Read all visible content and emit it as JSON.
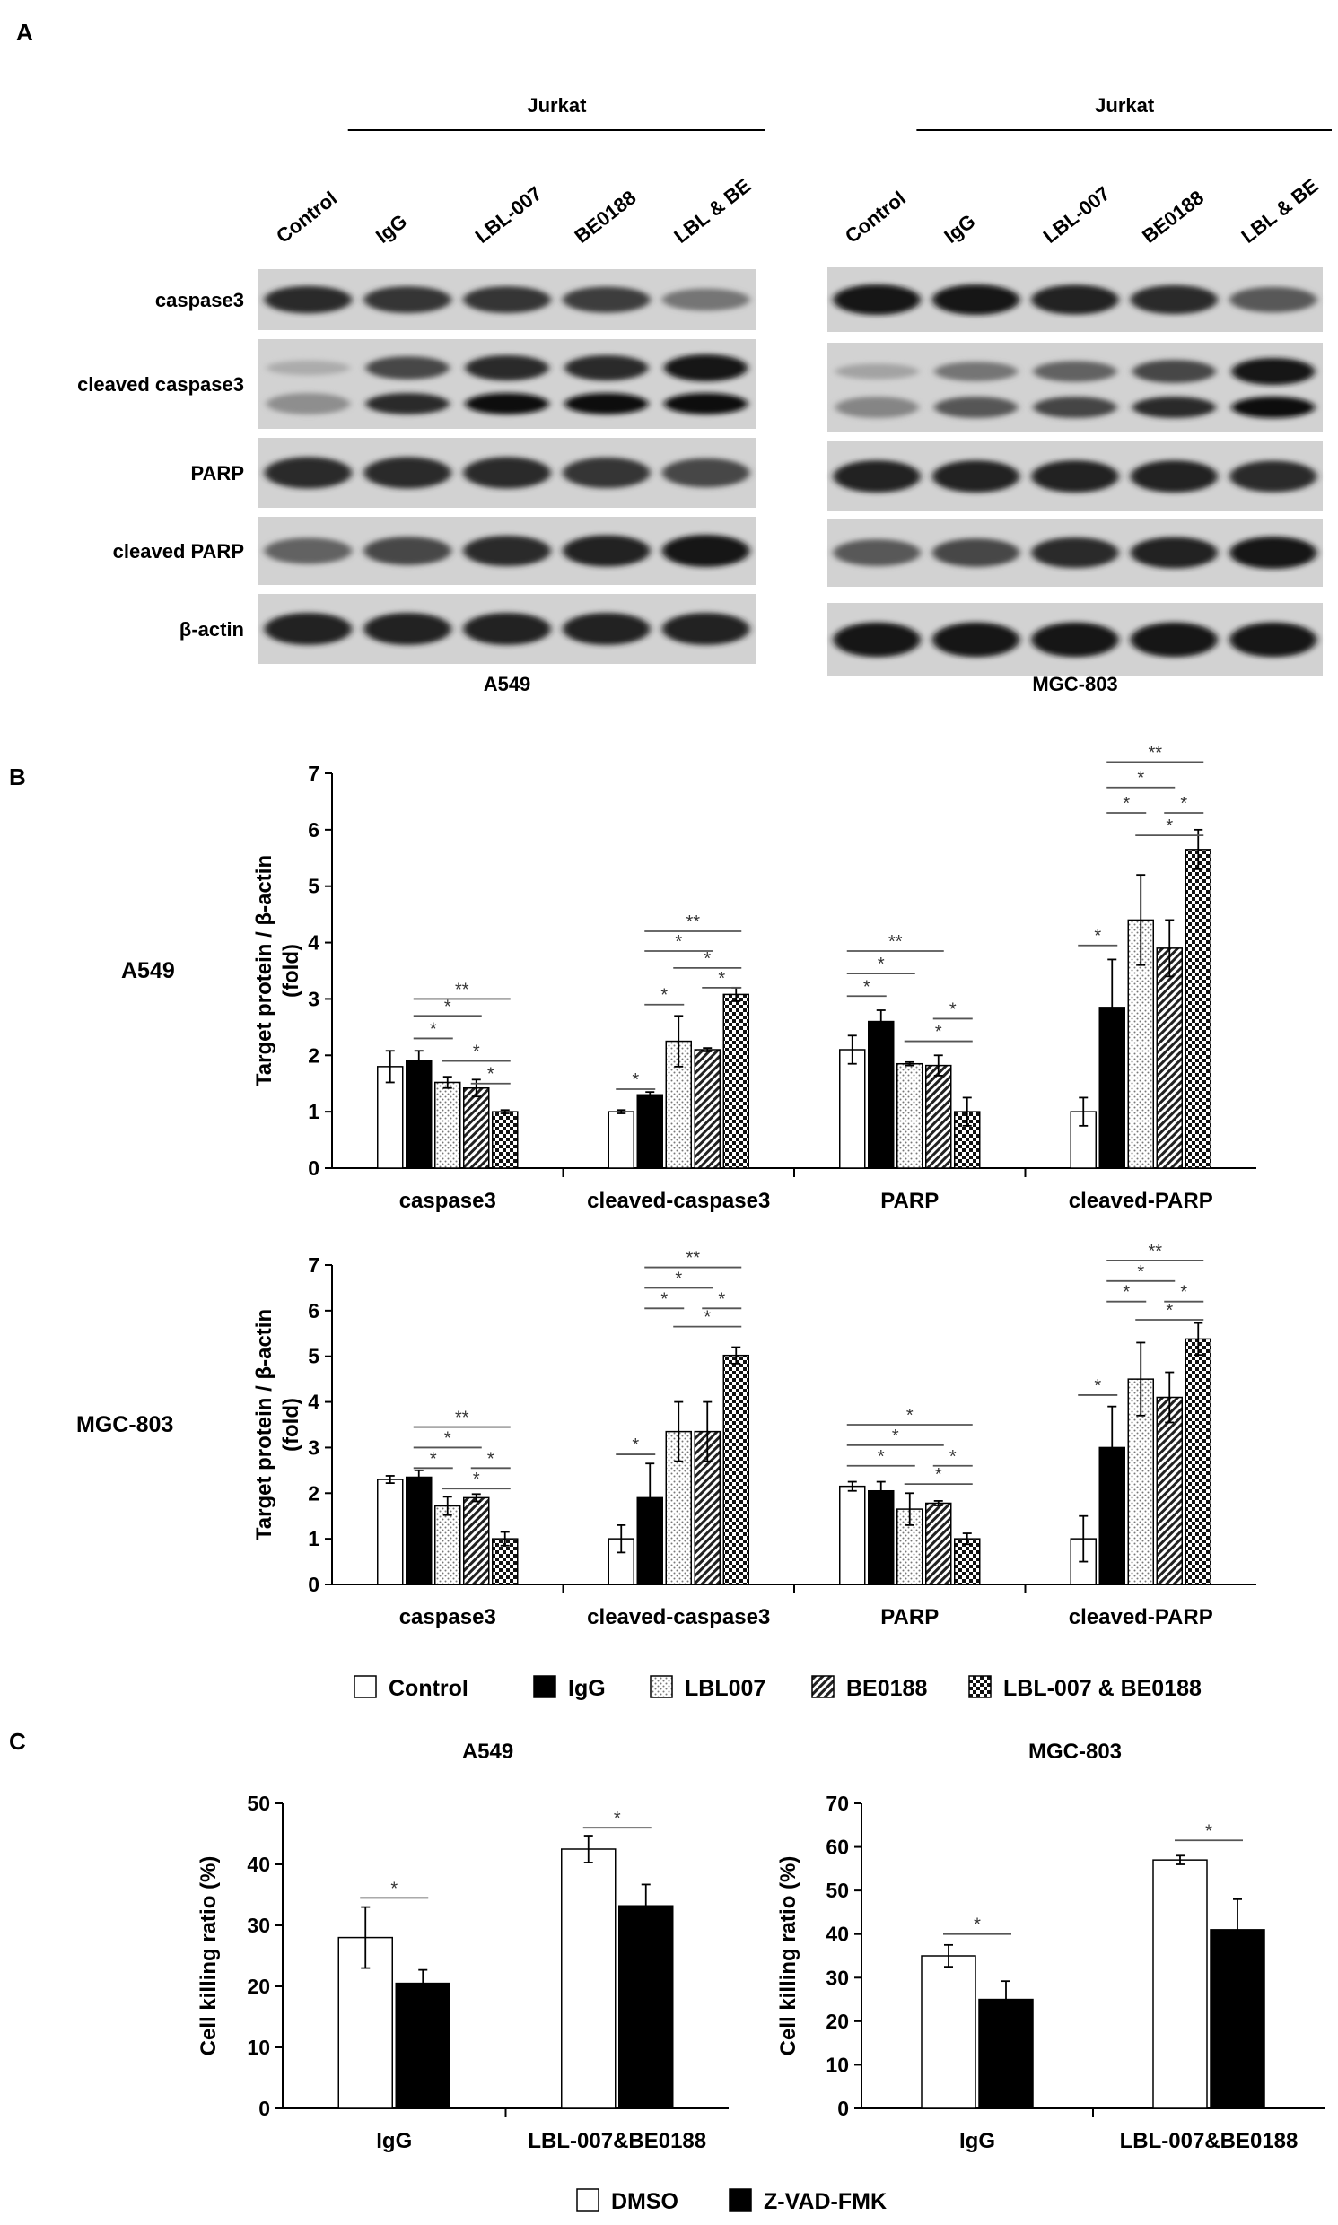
{
  "panel_labels": {
    "a": "A",
    "b": "B",
    "c": "C"
  },
  "blots": [
    {
      "cell_line": "A549",
      "group_header": "Jurkat",
      "lanes": [
        "Control",
        "IgG",
        "LBL-007",
        "BE0188",
        "LBL & BE"
      ],
      "rows": [
        {
          "label": "caspase3",
          "intensity": [
            0.85,
            0.8,
            0.8,
            0.75,
            0.45
          ]
        },
        {
          "label": "cleaved   caspase3",
          "intensity": [
            0.15,
            0.7,
            0.85,
            0.85,
            0.95
          ],
          "double_band": true
        },
        {
          "label": "PARP",
          "intensity": [
            0.85,
            0.85,
            0.85,
            0.8,
            0.7
          ]
        },
        {
          "label": "cleaved PARP",
          "intensity": [
            0.55,
            0.7,
            0.85,
            0.9,
            0.95
          ]
        },
        {
          "label": "β-actin",
          "intensity": [
            0.9,
            0.9,
            0.9,
            0.9,
            0.9
          ]
        }
      ]
    },
    {
      "cell_line": "MGC-803",
      "group_header": "Jurkat",
      "lanes": [
        "Control",
        "IgG",
        "LBL-007",
        "BE0188",
        "LBL & BE"
      ],
      "rows": [
        {
          "label": "caspase3",
          "intensity": [
            0.95,
            0.95,
            0.9,
            0.85,
            0.6
          ]
        },
        {
          "label": "cleaved caspase3",
          "intensity": [
            0.2,
            0.45,
            0.55,
            0.7,
            0.95
          ],
          "double_band": true
        },
        {
          "label": "PARP",
          "intensity": [
            0.9,
            0.9,
            0.9,
            0.9,
            0.85
          ]
        },
        {
          "label": "cleaved PARP",
          "intensity": [
            0.6,
            0.7,
            0.85,
            0.9,
            0.95
          ]
        },
        {
          "label": "β-actin",
          "intensity": [
            0.95,
            0.95,
            0.95,
            0.95,
            0.95
          ]
        }
      ]
    }
  ],
  "chart_data": [
    {
      "type": "bar",
      "row_label": "A549",
      "ylabel": "Target protein / β-actin\n(fold)",
      "ylim": [
        0,
        7
      ],
      "yticks": [
        0,
        1,
        2,
        3,
        4,
        5,
        6,
        7
      ],
      "categories": [
        "caspase3",
        "cleaved-caspase3",
        "PARP",
        "cleaved-PARP"
      ],
      "series": [
        {
          "name": "Control",
          "pattern": "white",
          "values": [
            1.8,
            1.0,
            2.1,
            1.0
          ],
          "errors": [
            0.28,
            0.03,
            0.25,
            0.25
          ]
        },
        {
          "name": "IgG",
          "pattern": "black",
          "values": [
            1.9,
            1.3,
            2.6,
            2.85
          ],
          "errors": [
            0.18,
            0.05,
            0.2,
            0.85
          ]
        },
        {
          "name": "LBL007",
          "pattern": "dots",
          "values": [
            1.52,
            2.25,
            1.85,
            4.4
          ],
          "errors": [
            0.1,
            0.45,
            0.03,
            0.8
          ]
        },
        {
          "name": "BE0188",
          "pattern": "hatch",
          "values": [
            1.42,
            2.1,
            1.82,
            3.9
          ],
          "errors": [
            0.15,
            0.03,
            0.18,
            0.5
          ]
        },
        {
          "name": "LBL-007 & BE0188",
          "pattern": "checker",
          "values": [
            1.0,
            3.08,
            1.0,
            5.65
          ],
          "errors": [
            0.03,
            0.12,
            0.25,
            0.35
          ]
        }
      ],
      "significance": [
        {
          "category": 0,
          "from": 1,
          "to": 4,
          "label": "**",
          "y": 3.0
        },
        {
          "category": 0,
          "from": 1,
          "to": 3,
          "label": "*",
          "y": 2.7
        },
        {
          "category": 0,
          "from": 1,
          "to": 2,
          "label": "*",
          "y": 2.3
        },
        {
          "category": 0,
          "from": 2,
          "to": 4,
          "label": "*",
          "y": 1.9
        },
        {
          "category": 0,
          "from": 3,
          "to": 4,
          "label": "*",
          "y": 1.5
        },
        {
          "category": 1,
          "from": 0,
          "to": 1,
          "label": "*",
          "y": 1.4
        },
        {
          "category": 1,
          "from": 1,
          "to": 2,
          "label": "*",
          "y": 2.9
        },
        {
          "category": 1,
          "from": 1,
          "to": 4,
          "label": "**",
          "y": 4.2
        },
        {
          "category": 1,
          "from": 1,
          "to": 3,
          "label": "*",
          "y": 3.85
        },
        {
          "category": 1,
          "from": 2,
          "to": 4,
          "label": "*",
          "y": 3.55
        },
        {
          "category": 1,
          "from": 3,
          "to": 4,
          "label": "*",
          "y": 3.2
        },
        {
          "category": 2,
          "from": 0,
          "to": 3,
          "label": "**",
          "y": 3.85
        },
        {
          "category": 2,
          "from": 0,
          "to": 2,
          "label": "*",
          "y": 3.45
        },
        {
          "category": 2,
          "from": 0,
          "to": 1,
          "label": "*",
          "y": 3.05
        },
        {
          "category": 2,
          "from": 3,
          "to": 4,
          "label": "*",
          "y": 2.65
        },
        {
          "category": 2,
          "from": 2,
          "to": 4,
          "label": "*",
          "y": 2.25
        },
        {
          "category": 3,
          "from": 0,
          "to": 1,
          "label": "*",
          "y": 3.95
        },
        {
          "category": 3,
          "from": 1,
          "to": 4,
          "label": "**",
          "y": 7.2
        },
        {
          "category": 3,
          "from": 1,
          "to": 3,
          "label": "*",
          "y": 6.75
        },
        {
          "category": 3,
          "from": 1,
          "to": 2,
          "label": "*",
          "y": 6.3
        },
        {
          "category": 3,
          "from": 3,
          "to": 4,
          "label": "*",
          "y": 6.3
        },
        {
          "category": 3,
          "from": 2,
          "to": 4,
          "label": "*",
          "y": 5.9
        }
      ]
    },
    {
      "type": "bar",
      "row_label": "MGC-803",
      "ylabel": "Target protein / β-actin\n(fold)",
      "ylim": [
        0,
        7
      ],
      "yticks": [
        0,
        1,
        2,
        3,
        4,
        5,
        6,
        7
      ],
      "categories": [
        "caspase3",
        "cleaved-caspase3",
        "PARP",
        "cleaved-PARP"
      ],
      "series": [
        {
          "name": "Control",
          "pattern": "white",
          "values": [
            2.3,
            1.0,
            2.15,
            1.0
          ],
          "errors": [
            0.08,
            0.3,
            0.1,
            0.5
          ]
        },
        {
          "name": "IgG",
          "pattern": "black",
          "values": [
            2.35,
            1.9,
            2.05,
            3.0
          ],
          "errors": [
            0.15,
            0.75,
            0.2,
            0.9
          ]
        },
        {
          "name": "LBL007",
          "pattern": "dots",
          "values": [
            1.72,
            3.35,
            1.65,
            4.5
          ],
          "errors": [
            0.2,
            0.65,
            0.35,
            0.8
          ]
        },
        {
          "name": "BE0188",
          "pattern": "hatch",
          "values": [
            1.9,
            3.35,
            1.78,
            4.1
          ],
          "errors": [
            0.08,
            0.65,
            0.05,
            0.55
          ]
        },
        {
          "name": "LBL-007 & BE0188",
          "pattern": "checker",
          "values": [
            1.0,
            5.02,
            1.0,
            5.38
          ],
          "errors": [
            0.15,
            0.18,
            0.12,
            0.35
          ]
        }
      ],
      "significance": [
        {
          "category": 0,
          "from": 1,
          "to": 4,
          "label": "**",
          "y": 3.45
        },
        {
          "category": 0,
          "from": 1,
          "to": 3,
          "label": "*",
          "y": 3.0
        },
        {
          "category": 0,
          "from": 1,
          "to": 2,
          "label": "*",
          "y": 2.55
        },
        {
          "category": 0,
          "from": 3,
          "to": 4,
          "label": "*",
          "y": 2.55
        },
        {
          "category": 0,
          "from": 2,
          "to": 4,
          "label": "*",
          "y": 2.1
        },
        {
          "category": 1,
          "from": 0,
          "to": 1,
          "label": "*",
          "y": 2.85
        },
        {
          "category": 1,
          "from": 1,
          "to": 4,
          "label": "**",
          "y": 6.95
        },
        {
          "category": 1,
          "from": 1,
          "to": 3,
          "label": "*",
          "y": 6.5
        },
        {
          "category": 1,
          "from": 1,
          "to": 2,
          "label": "*",
          "y": 6.05
        },
        {
          "category": 1,
          "from": 3,
          "to": 4,
          "label": "*",
          "y": 6.05
        },
        {
          "category": 1,
          "from": 2,
          "to": 4,
          "label": "*",
          "y": 5.65
        },
        {
          "category": 2,
          "from": 0,
          "to": 4,
          "label": "*",
          "y": 3.5
        },
        {
          "category": 2,
          "from": 0,
          "to": 3,
          "label": "*",
          "y": 3.05
        },
        {
          "category": 2,
          "from": 0,
          "to": 2,
          "label": "*",
          "y": 2.6
        },
        {
          "category": 2,
          "from": 3,
          "to": 4,
          "label": "*",
          "y": 2.6
        },
        {
          "category": 2,
          "from": 2,
          "to": 4,
          "label": "*",
          "y": 2.2
        },
        {
          "category": 3,
          "from": 0,
          "to": 1,
          "label": "*",
          "y": 4.15
        },
        {
          "category": 3,
          "from": 1,
          "to": 4,
          "label": "**",
          "y": 7.1
        },
        {
          "category": 3,
          "from": 1,
          "to": 3,
          "label": "*",
          "y": 6.65
        },
        {
          "category": 3,
          "from": 1,
          "to": 2,
          "label": "*",
          "y": 6.2
        },
        {
          "category": 3,
          "from": 3,
          "to": 4,
          "label": "*",
          "y": 6.2
        },
        {
          "category": 3,
          "from": 2,
          "to": 4,
          "label": "*",
          "y": 5.8
        }
      ]
    },
    {
      "type": "bar",
      "title": "A549",
      "ylabel": "Cell killing ratio (%)",
      "ylim": [
        0,
        50
      ],
      "yticks": [
        0,
        10,
        20,
        30,
        40,
        50
      ],
      "categories": [
        "IgG",
        "LBL-007&BE0188"
      ],
      "series": [
        {
          "name": "DMSO",
          "pattern": "white",
          "values": [
            28,
            42.5
          ],
          "errors": [
            5,
            2.2
          ]
        },
        {
          "name": "Z-VAD-FMK",
          "pattern": "black",
          "values": [
            20.5,
            33.2
          ],
          "errors": [
            2.2,
            3.5
          ]
        }
      ],
      "significance": [
        {
          "category": 0,
          "from": 0,
          "to": 1,
          "label": "*",
          "y": 34.5
        },
        {
          "category": 1,
          "from": 0,
          "to": 1,
          "label": "*",
          "y": 46
        }
      ]
    },
    {
      "type": "bar",
      "title": "MGC-803",
      "ylabel": "Cell killing ratio (%)",
      "ylim": [
        0,
        70
      ],
      "yticks": [
        0,
        10,
        20,
        30,
        40,
        50,
        60,
        70
      ],
      "categories": [
        "IgG",
        "LBL-007&BE0188"
      ],
      "series": [
        {
          "name": "DMSO",
          "pattern": "white",
          "values": [
            35,
            57
          ],
          "errors": [
            2.5,
            1
          ]
        },
        {
          "name": "Z-VAD-FMK",
          "pattern": "black",
          "values": [
            25,
            41
          ],
          "errors": [
            4.2,
            7
          ]
        }
      ],
      "significance": [
        {
          "category": 0,
          "from": 0,
          "to": 1,
          "label": "*",
          "y": 40
        },
        {
          "category": 1,
          "from": 0,
          "to": 1,
          "label": "*",
          "y": 61.5
        }
      ]
    }
  ],
  "legends": {
    "b": [
      "Control",
      "IgG",
      "LBL007",
      "BE0188",
      "LBL-007 & BE0188"
    ],
    "c": [
      "DMSO",
      "Z-VAD-FMK"
    ]
  },
  "colors": {
    "black": "#000000",
    "white": "#ffffff",
    "axis": "#000000",
    "sig_line": "#555555",
    "blot_bg": "#d2d2d2",
    "band": "#111111"
  }
}
